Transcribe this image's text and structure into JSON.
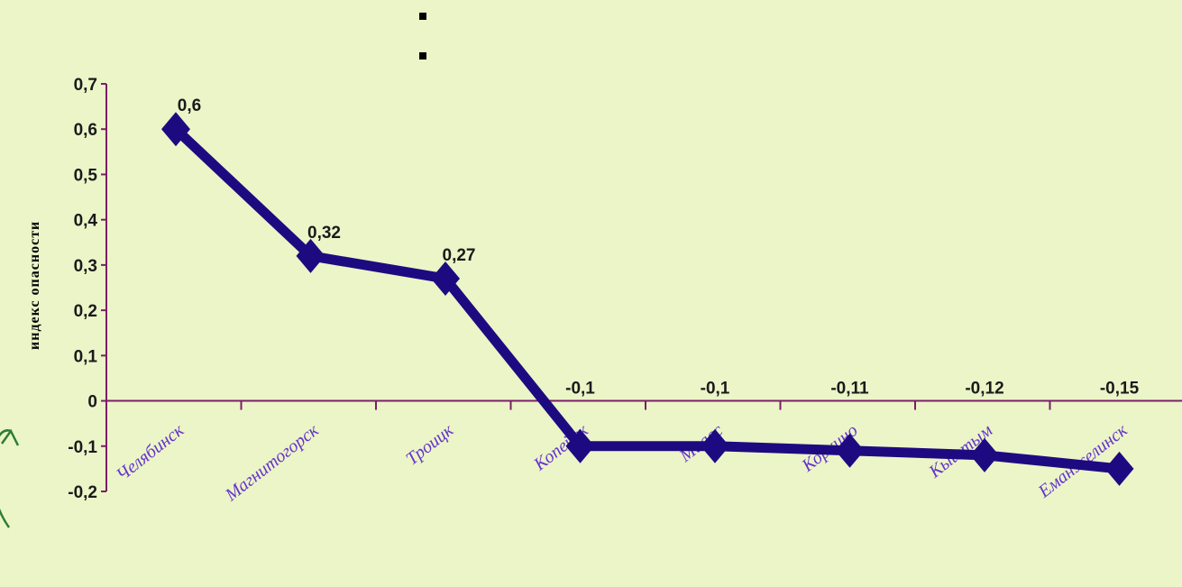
{
  "colors": {
    "background": "#ebf5c8",
    "series": "#1e0a80",
    "axis": "#7a1f66",
    "category_label": "#6633cc"
  },
  "icons": [
    "bullet-square-icon",
    "bullet-square-icon",
    "circle-arrow-icon"
  ],
  "chart_data": {
    "type": "line",
    "title": "",
    "xlabel": "",
    "ylabel": "индекс опасности",
    "categories": [
      "Челябинск",
      "Магнитогорск",
      "Троицк",
      "Копейск",
      "Миасс",
      "Коркино",
      "Кыштым",
      "Еманжелинск"
    ],
    "series": [
      {
        "values": [
          0.6,
          0.32,
          0.27,
          -0.1,
          -0.1,
          -0.11,
          -0.12,
          -0.15
        ],
        "data_labels": [
          "0,6",
          "0,32",
          "0,27",
          "-0,1",
          "-0,1",
          "-0,11",
          "-0,12",
          "-0,15"
        ]
      }
    ],
    "ylim": [
      -0.2,
      0.7
    ],
    "yticks": [
      "-0,2",
      "-0,1",
      "0",
      "0,1",
      "0,2",
      "0,3",
      "0,4",
      "0,5",
      "0,6",
      "0,7"
    ],
    "grid": false,
    "legend": "none"
  }
}
